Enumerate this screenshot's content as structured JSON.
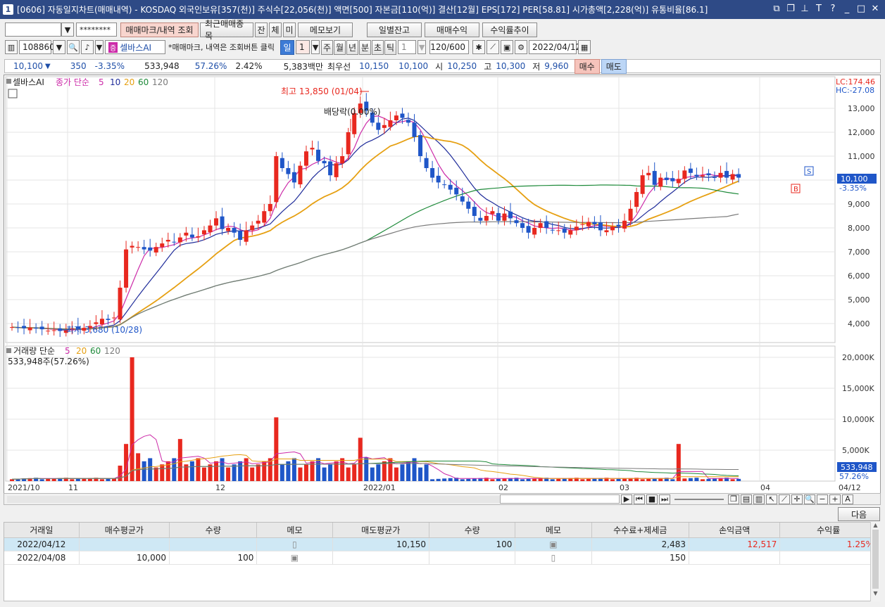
{
  "window": {
    "num": "1",
    "title": "[0606] 자동일지차트(매매내역) - KOSDAQ 외국인보유[357(천)] 주식수[22,056(천)] 액면[500] 자본금[110(억)] 결산[12월] EPS[172] PER[58.81] 시가총액[2,228(억)] 유통비율[86.1]"
  },
  "toolbar1": {
    "account": "",
    "password": "********",
    "buttons": [
      "매매마크/내역 조회",
      "최근매매종목",
      "잔",
      "체",
      "미",
      "메모보기",
      "일별잔고",
      "매매수익",
      "수익률추이"
    ]
  },
  "toolbar2": {
    "code": "108860",
    "stock": "셀바스AI",
    "notice": "*매매마크, 내역은 조회버튼 클릭",
    "period_buttons": [
      "일",
      "1",
      "주",
      "월",
      "년",
      "분",
      "초",
      "틱",
      "1"
    ],
    "count": "120/600",
    "date": "2022/04/12"
  },
  "quote": {
    "price": "10,100",
    "arrow": "▼",
    "change": "350",
    "rate": "-3.35%",
    "volume": "533,948",
    "vol_ratio": "57.26%",
    "turnover": "2.42%",
    "amount": "5,383백만",
    "best_label": "최우선",
    "bid": "10,150",
    "ask": "10,100",
    "open_label": "시",
    "open": "10,250",
    "high_label": "고",
    "high": "10,300",
    "low_label": "저",
    "low": "9,960",
    "buy": "매수",
    "sell": "매도"
  },
  "chart_data": {
    "type": "candlestick",
    "stock_label": "셀바스AI",
    "price_legend": {
      "prefix": "종가 단순",
      "periods": [
        "5",
        "10",
        "20",
        "60",
        "120"
      ]
    },
    "volume_legend": {
      "prefix": "거래량 단순",
      "periods": [
        "5",
        "20",
        "60",
        "120"
      ]
    },
    "volume_info": "533,948주(57.26%)",
    "lc": "LC:174.46",
    "hc": "HC:-27.08",
    "last_price_label": "10,100",
    "last_rate_label": "-3.35%",
    "last_volume_label": "533,948",
    "last_volume_rate": "57.26%",
    "annotations": {
      "high": "최고 13,850 (01/04)",
      "low": "최저 3,680 (10/28)",
      "dividend": "배당락(0.00%)"
    },
    "price_ticks": [
      "13,000",
      "12,000",
      "11,000",
      "10,000",
      "9,000",
      "8,000",
      "7,000",
      "6,000",
      "5,000",
      "4,000"
    ],
    "volume_ticks": [
      "20,000K",
      "15,000K",
      "10,000K",
      "5,000K"
    ],
    "x_labels": [
      "2021/10",
      "11",
      "12",
      "2022/01",
      "02",
      "03",
      "04",
      "04/12"
    ],
    "colors": {
      "up": "#e8281f",
      "down": "#1f56c8",
      "ma5": "#cc2aa8",
      "ma10": "#1f2c9a",
      "ma20": "#e6a012",
      "ma60": "#1e8a3a",
      "ma120": "#7a7a7a"
    },
    "trade_marks": [
      "S",
      "B"
    ]
  },
  "controls": {
    "next_button": "다음"
  },
  "table": {
    "headers": [
      "거래일",
      "매수평균가",
      "수량",
      "메모",
      "매도평균가",
      "수량",
      "메모",
      "수수료+제세금",
      "손익금액",
      "수익률"
    ],
    "rows": [
      [
        "2022/04/12",
        "",
        "",
        "memo",
        "10,150",
        "100",
        "memo",
        "2,483",
        "12,517",
        "1.25%"
      ],
      [
        "2022/04/08",
        "10,000",
        "100",
        "memo",
        "",
        "",
        "memo",
        "150",
        "",
        ""
      ]
    ]
  }
}
